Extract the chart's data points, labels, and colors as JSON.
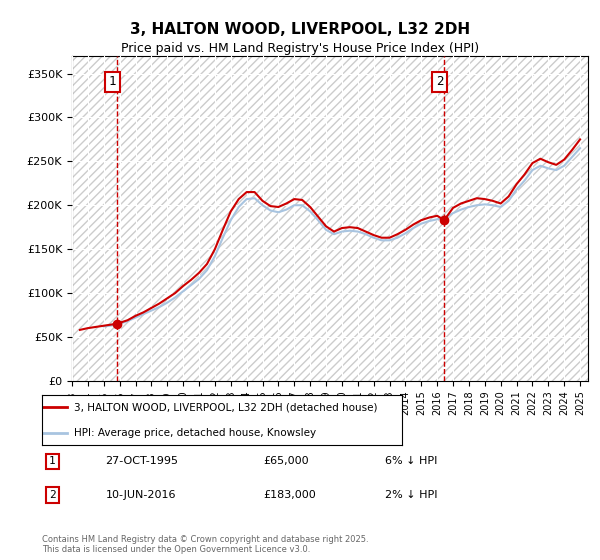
{
  "title": "3, HALTON WOOD, LIVERPOOL, L32 2DH",
  "subtitle": "Price paid vs. HM Land Registry's House Price Index (HPI)",
  "ylabel": "",
  "xlim_start": 1993.0,
  "xlim_end": 2025.5,
  "ylim": [
    0,
    370000
  ],
  "yticks": [
    0,
    50000,
    100000,
    150000,
    200000,
    250000,
    300000,
    350000
  ],
  "ytick_labels": [
    "£0",
    "£50K",
    "£100K",
    "£150K",
    "£200K",
    "£250K",
    "£300K",
    "£350K"
  ],
  "sale1_x": 1995.82,
  "sale1_y": 65000,
  "sale1_label": "1",
  "sale2_x": 2016.44,
  "sale2_y": 183000,
  "sale2_label": "2",
  "dashed_line1_x": 1995.82,
  "dashed_line2_x": 2016.44,
  "legend_line1": "3, HALTON WOOD, LIVERPOOL, L32 2DH (detached house)",
  "legend_line2": "HPI: Average price, detached house, Knowsley",
  "ann1_date": "27-OCT-1995",
  "ann1_price": "£65,000",
  "ann1_hpi": "6% ↓ HPI",
  "ann2_date": "10-JUN-2016",
  "ann2_price": "£183,000",
  "ann2_hpi": "2% ↓ HPI",
  "footer": "Contains HM Land Registry data © Crown copyright and database right 2025.\nThis data is licensed under the Open Government Licence v3.0.",
  "hpi_color": "#a8c4e0",
  "price_color": "#cc0000",
  "hatch_color": "#d0d0d0",
  "background_color": "#ffffff",
  "hpi_data_x": [
    1995.0,
    1995.5,
    1996.0,
    1996.5,
    1997.0,
    1997.5,
    1998.0,
    1998.5,
    1999.0,
    1999.5,
    2000.0,
    2000.5,
    2001.0,
    2001.5,
    2002.0,
    2002.5,
    2003.0,
    2003.5,
    2004.0,
    2004.5,
    2005.0,
    2005.5,
    2006.0,
    2006.5,
    2007.0,
    2007.5,
    2008.0,
    2008.5,
    2009.0,
    2009.5,
    2010.0,
    2010.5,
    2011.0,
    2011.5,
    2012.0,
    2012.5,
    2013.0,
    2013.5,
    2014.0,
    2014.5,
    2015.0,
    2015.5,
    2016.0,
    2016.5,
    2017.0,
    2017.5,
    2018.0,
    2018.5,
    2019.0,
    2019.5,
    2020.0,
    2020.5,
    2021.0,
    2021.5,
    2022.0,
    2022.5,
    2023.0,
    2023.5,
    2024.0,
    2024.5,
    2025.0
  ],
  "hpi_data_y": [
    62000,
    63000,
    65000,
    68000,
    72000,
    76000,
    80000,
    84000,
    89000,
    95000,
    102000,
    109000,
    116000,
    126000,
    142000,
    163000,
    183000,
    198000,
    207000,
    208000,
    200000,
    194000,
    192000,
    195000,
    200000,
    200000,
    193000,
    183000,
    172000,
    167000,
    170000,
    171000,
    170000,
    167000,
    163000,
    160000,
    160000,
    163000,
    168000,
    174000,
    179000,
    182000,
    184000,
    186000,
    191000,
    195000,
    198000,
    200000,
    201000,
    200000,
    198000,
    205000,
    218000,
    228000,
    240000,
    245000,
    242000,
    240000,
    245000,
    255000,
    265000
  ],
  "price_data_x": [
    1993.5,
    1994.0,
    1995.82,
    1995.82,
    1996.5,
    1997.0,
    1997.5,
    1998.0,
    1998.5,
    1999.0,
    1999.5,
    2000.0,
    2000.5,
    2001.0,
    2001.5,
    2002.0,
    2002.5,
    2003.0,
    2003.5,
    2004.0,
    2004.5,
    2005.0,
    2005.5,
    2006.0,
    2006.5,
    2007.0,
    2007.5,
    2008.0,
    2008.5,
    2009.0,
    2009.5,
    2010.0,
    2010.5,
    2011.0,
    2011.5,
    2012.0,
    2012.5,
    2013.0,
    2013.5,
    2014.0,
    2014.5,
    2015.0,
    2015.5,
    2016.0,
    2016.44,
    2016.44,
    2017.0,
    2017.5,
    2018.0,
    2018.5,
    2019.0,
    2019.5,
    2020.0,
    2020.5,
    2021.0,
    2021.5,
    2022.0,
    2022.5,
    2023.0,
    2023.5,
    2024.0,
    2024.5,
    2025.0
  ],
  "price_data_y": [
    58000,
    60000,
    65000,
    65000,
    69000,
    74000,
    78000,
    83000,
    88000,
    94000,
    100000,
    108000,
    115000,
    123000,
    133000,
    150000,
    172000,
    193000,
    207000,
    215000,
    215000,
    205000,
    199000,
    198000,
    202000,
    207000,
    206000,
    198000,
    187000,
    176000,
    170000,
    174000,
    175000,
    174000,
    170000,
    166000,
    163000,
    163000,
    167000,
    172000,
    178000,
    183000,
    186000,
    188000,
    183000,
    183000,
    197000,
    202000,
    205000,
    208000,
    207000,
    205000,
    202000,
    210000,
    224000,
    235000,
    248000,
    253000,
    249000,
    246000,
    252000,
    263000,
    275000
  ]
}
